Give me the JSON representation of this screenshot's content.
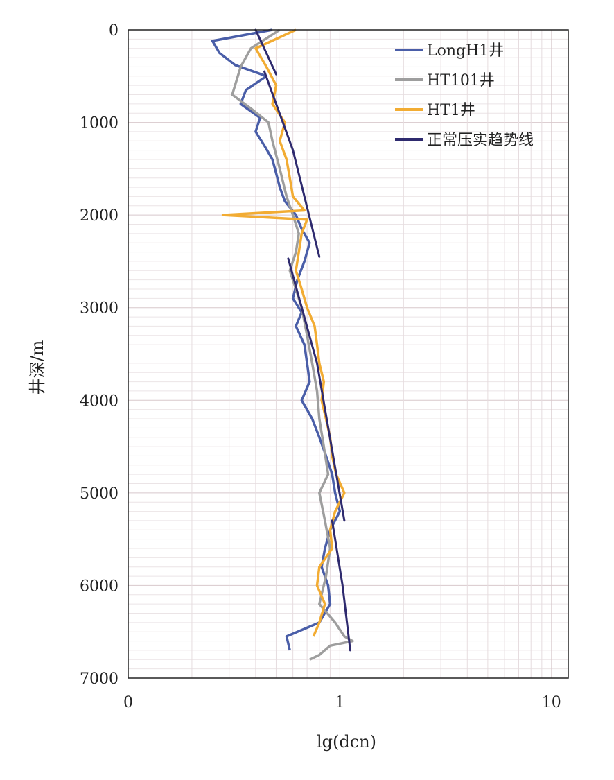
{
  "chart_data": {
    "type": "line",
    "orientation": "depth-vertical",
    "xlabel": "lg(dcn)",
    "ylabel": "井深/m",
    "x_scale": "log",
    "x_ticks": [
      {
        "label": "0",
        "value": 0.1
      },
      {
        "label": "1",
        "value": 1
      },
      {
        "label": "10",
        "value": 10
      }
    ],
    "xlim": [
      0.1,
      12
    ],
    "ylim": [
      0,
      7000
    ],
    "y_inverted": true,
    "y_ticks": [
      0,
      1000,
      2000,
      3000,
      4000,
      5000,
      6000,
      7000
    ],
    "grid": true,
    "legend_position": "top-right",
    "series": [
      {
        "name": "LongH1井",
        "color": "#4a5ea8",
        "points": [
          [
            0.48,
            0
          ],
          [
            0.25,
            120
          ],
          [
            0.27,
            250
          ],
          [
            0.32,
            380
          ],
          [
            0.45,
            500
          ],
          [
            0.36,
            650
          ],
          [
            0.34,
            800
          ],
          [
            0.42,
            950
          ],
          [
            0.4,
            1100
          ],
          [
            0.44,
            1250
          ],
          [
            0.48,
            1400
          ],
          [
            0.5,
            1550
          ],
          [
            0.52,
            1700
          ],
          [
            0.55,
            1850
          ],
          [
            0.62,
            2000
          ],
          [
            0.66,
            2150
          ],
          [
            0.72,
            2300
          ],
          [
            0.68,
            2500
          ],
          [
            0.63,
            2700
          ],
          [
            0.6,
            2900
          ],
          [
            0.66,
            3050
          ],
          [
            0.62,
            3200
          ],
          [
            0.68,
            3400
          ],
          [
            0.7,
            3600
          ],
          [
            0.72,
            3800
          ],
          [
            0.66,
            4000
          ],
          [
            0.74,
            4200
          ],
          [
            0.8,
            4400
          ],
          [
            0.86,
            4600
          ],
          [
            0.92,
            4800
          ],
          [
            0.95,
            5000
          ],
          [
            1.0,
            5200
          ],
          [
            0.9,
            5400
          ],
          [
            0.85,
            5600
          ],
          [
            0.82,
            5800
          ],
          [
            0.88,
            6000
          ],
          [
            0.9,
            6200
          ],
          [
            0.8,
            6400
          ],
          [
            0.56,
            6550
          ],
          [
            0.58,
            6700
          ]
        ]
      },
      {
        "name": "HT101井",
        "color": "#9e9e9e",
        "points": [
          [
            0.52,
            0
          ],
          [
            0.38,
            200
          ],
          [
            0.34,
            400
          ],
          [
            0.31,
            700
          ],
          [
            0.38,
            850
          ],
          [
            0.46,
            1000
          ],
          [
            0.48,
            1200
          ],
          [
            0.52,
            1500
          ],
          [
            0.56,
            1800
          ],
          [
            0.6,
            2000
          ],
          [
            0.64,
            2200
          ],
          [
            0.62,
            2400
          ],
          [
            0.58,
            2600
          ],
          [
            0.62,
            2800
          ],
          [
            0.66,
            3000
          ],
          [
            0.7,
            3300
          ],
          [
            0.74,
            3600
          ],
          [
            0.78,
            3900
          ],
          [
            0.8,
            4200
          ],
          [
            0.84,
            4500
          ],
          [
            0.88,
            4800
          ],
          [
            0.8,
            5000
          ],
          [
            0.85,
            5300
          ],
          [
            0.9,
            5600
          ],
          [
            0.86,
            5900
          ],
          [
            0.8,
            6200
          ],
          [
            0.95,
            6400
          ],
          [
            1.05,
            6550
          ],
          [
            1.15,
            6600
          ],
          [
            0.9,
            6650
          ],
          [
            0.8,
            6750
          ],
          [
            0.72,
            6800
          ]
        ]
      },
      {
        "name": "HT1井",
        "color": "#f2ac33",
        "points": [
          [
            0.62,
            0
          ],
          [
            0.4,
            200
          ],
          [
            0.45,
            400
          ],
          [
            0.5,
            600
          ],
          [
            0.48,
            800
          ],
          [
            0.55,
            1000
          ],
          [
            0.52,
            1200
          ],
          [
            0.56,
            1400
          ],
          [
            0.58,
            1600
          ],
          [
            0.6,
            1800
          ],
          [
            0.68,
            1950
          ],
          [
            0.28,
            2000
          ],
          [
            0.7,
            2050
          ],
          [
            0.66,
            2200
          ],
          [
            0.64,
            2400
          ],
          [
            0.62,
            2600
          ],
          [
            0.66,
            2800
          ],
          [
            0.7,
            3000
          ],
          [
            0.76,
            3200
          ],
          [
            0.78,
            3400
          ],
          [
            0.8,
            3600
          ],
          [
            0.84,
            3800
          ],
          [
            0.82,
            4000
          ],
          [
            0.86,
            4200
          ],
          [
            0.9,
            4400
          ],
          [
            0.92,
            4600
          ],
          [
            0.96,
            4800
          ],
          [
            1.05,
            5000
          ],
          [
            0.95,
            5200
          ],
          [
            0.9,
            5400
          ],
          [
            0.92,
            5600
          ],
          [
            0.8,
            5800
          ],
          [
            0.78,
            6000
          ],
          [
            0.85,
            6200
          ],
          [
            0.8,
            6400
          ],
          [
            0.75,
            6550
          ]
        ]
      },
      {
        "name": "正常压实趋势线",
        "color": "#2e2a6e",
        "segments": [
          [
            [
              0.4,
              0
            ],
            [
              0.5,
              480
            ]
          ],
          [
            [
              0.44,
              450
            ],
            [
              0.6,
              1300
            ],
            [
              0.8,
              2450
            ]
          ],
          [
            [
              0.57,
              2470
            ],
            [
              0.78,
              3600
            ],
            [
              1.05,
              5300
            ]
          ],
          [
            [
              0.92,
              5300
            ],
            [
              1.03,
              6000
            ],
            [
              1.12,
              6700
            ]
          ]
        ]
      }
    ]
  }
}
